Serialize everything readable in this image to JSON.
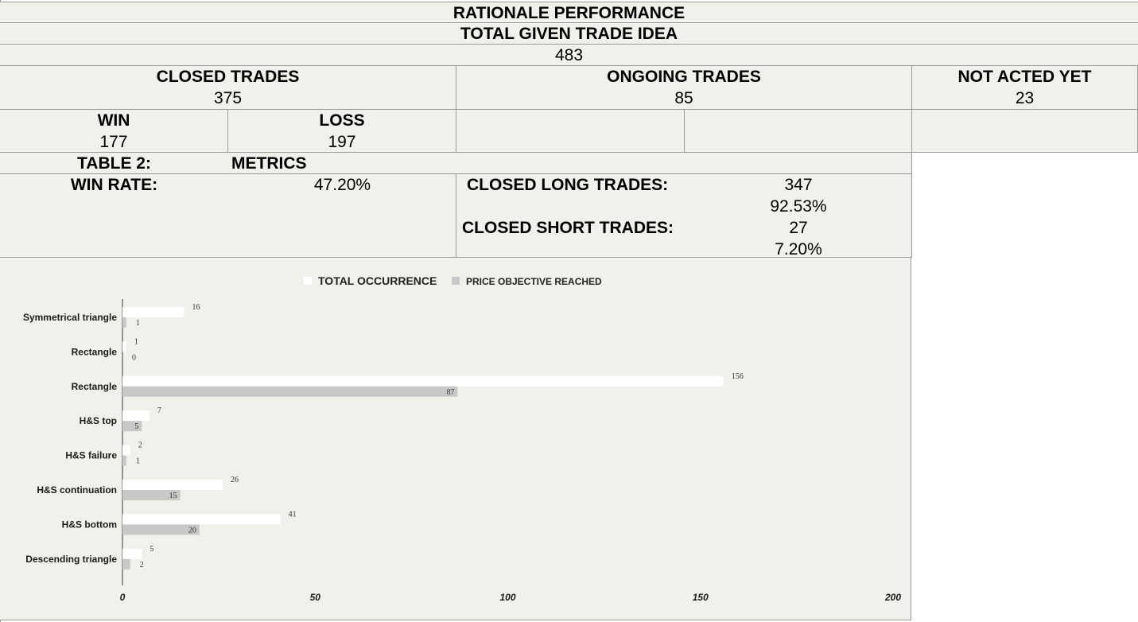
{
  "header": {
    "title": "RATIONALE PERFORMANCE",
    "subtitle": "TOTAL GIVEN TRADE IDEA",
    "total": "483"
  },
  "summary": {
    "closed_label": "CLOSED TRADES",
    "closed_value": "375",
    "ongoing_label": "ONGOING TRADES",
    "ongoing_value": "85",
    "not_acted_label": "NOT ACTED YET",
    "not_acted_value": "23",
    "win_label": "WIN",
    "win_value": "177",
    "loss_label": "LOSS",
    "loss_value": "197"
  },
  "table2": {
    "label": "TABLE 2:",
    "metrics_label": "METRICS",
    "win_rate_label": "WIN RATE:",
    "win_rate_value": "47.20%",
    "closed_long_label": "CLOSED LONG TRADES:",
    "closed_long_value": "347",
    "closed_long_pct": "92.53%",
    "closed_short_label": "CLOSED SHORT TRADES:",
    "closed_short_value": "27",
    "closed_short_pct": "7.20%"
  },
  "chart_data": {
    "type": "bar",
    "orientation": "horizontal",
    "categories": [
      "Symmetrical triangle",
      "Rectangle",
      "Rectangle",
      "H&S top",
      "H&S failure",
      "H&S continuation",
      "H&S bottom",
      "Descending triangle"
    ],
    "series": [
      {
        "name": "TOTAL OCCURRENCE",
        "color": "#ffffff",
        "values": [
          16,
          1,
          156,
          7,
          2,
          26,
          41,
          5
        ]
      },
      {
        "name": "PRICE OBJECTIVE REACHED",
        "color": "#c8c8c8",
        "values": [
          1,
          0,
          87,
          5,
          1,
          15,
          20,
          2
        ]
      }
    ],
    "xticks": [
      "0",
      "50",
      "100",
      "150",
      "200"
    ],
    "xlim": [
      0,
      200
    ],
    "legend_position": "top",
    "grid": false
  }
}
